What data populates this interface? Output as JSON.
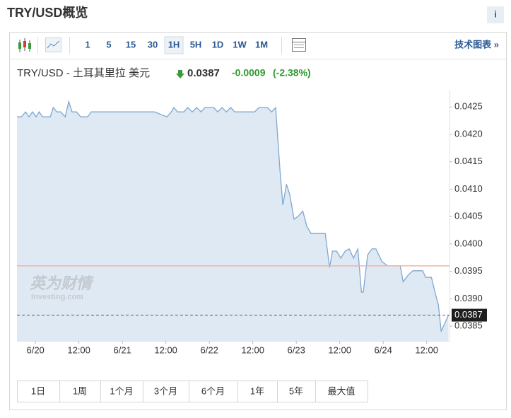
{
  "page": {
    "title": "TRY/USD概览",
    "info": "i"
  },
  "toolbar": {
    "intervals": [
      "1",
      "5",
      "15",
      "30",
      "1H",
      "5H",
      "1D",
      "1W",
      "1M"
    ],
    "selected": "1H",
    "link": "技术图表 »"
  },
  "quote": {
    "name": "TRY/USD - 土耳其里拉 美元",
    "price": 0.0387,
    "change": -0.0009,
    "change_pct": "(-2.38%)"
  },
  "watermark": {
    "cn": "英为财情",
    "en": "Investing.com"
  },
  "ranges": [
    "1日",
    "1周",
    "1个月",
    "3个月",
    "6个月",
    "1年",
    "5年",
    "最大值"
  ],
  "chart_data": {
    "type": "area",
    "color": "#7fa7cf",
    "fill": "#dfe9f4",
    "x": [
      -5.1,
      -3.9,
      -2.7,
      -1.8,
      -0.8,
      0.2,
      1.0,
      2.0,
      3.1,
      4.1,
      4.9,
      5.9,
      7.0,
      8.2,
      9.2,
      10.1,
      11.3,
      12.5,
      14.4,
      15.4,
      32.8,
      36.3,
      37.5,
      38.2,
      39.2,
      41.0,
      42.0,
      43.3,
      44.5,
      45.7,
      46.8,
      48.0,
      49.2,
      50.3,
      51.5,
      52.7,
      53.9,
      55.0,
      60.5,
      61.7,
      64.0,
      65.2,
      66.3,
      67.5,
      68.3,
      69.3,
      70.2,
      71.4,
      72.6,
      73.8,
      74.9,
      76.1,
      78.4,
      80.0,
      81.2,
      82.0,
      83.1,
      84.3,
      85.5,
      86.6,
      87.8,
      89.0,
      90.0,
      90.5,
      91.7,
      92.9,
      94.0,
      95.6,
      97.2,
      100.7,
      101.5,
      103.0,
      104.2,
      106.9,
      107.7,
      109.3,
      110.4,
      111.2,
      112.0,
      113.2,
      114.0
    ],
    "values": [
      0.04232,
      0.04232,
      0.04241,
      0.04232,
      0.04241,
      0.04232,
      0.04241,
      0.04232,
      0.04232,
      0.04232,
      0.04249,
      0.04241,
      0.04241,
      0.04232,
      0.0426,
      0.04241,
      0.04241,
      0.04232,
      0.04232,
      0.04241,
      0.04241,
      0.04232,
      0.04241,
      0.04249,
      0.04241,
      0.04241,
      0.04249,
      0.04241,
      0.04249,
      0.04241,
      0.04249,
      0.04249,
      0.04249,
      0.04241,
      0.04249,
      0.04241,
      0.04249,
      0.04241,
      0.04241,
      0.04249,
      0.04249,
      0.04241,
      0.04249,
      0.04135,
      0.04071,
      0.04109,
      0.0409,
      0.04045,
      0.04051,
      0.0406,
      0.04032,
      0.04019,
      0.04019,
      0.04019,
      0.03957,
      0.03987,
      0.03987,
      0.03974,
      0.03987,
      0.03991,
      0.03974,
      0.03991,
      0.03912,
      0.03912,
      0.0398,
      0.03991,
      0.03991,
      0.03968,
      0.0396,
      0.0396,
      0.03931,
      0.03944,
      0.03951,
      0.03951,
      0.03939,
      0.03939,
      0.03909,
      0.0389,
      0.03841,
      0.03858,
      0.0387
    ],
    "xlim": [
      -5.1,
      114.3
    ],
    "xticks": [
      {
        "value": 0,
        "label": "6/20"
      },
      {
        "value": 12,
        "label": "12:00"
      },
      {
        "value": 24,
        "label": "6/21"
      },
      {
        "value": 36,
        "label": "12:00"
      },
      {
        "value": 48,
        "label": "6/22"
      },
      {
        "value": 60,
        "label": "12:00"
      },
      {
        "value": 72,
        "label": "6/23"
      },
      {
        "value": 84,
        "label": "12:00"
      },
      {
        "value": 96,
        "label": "6/24"
      },
      {
        "value": 108,
        "label": "12:00"
      }
    ],
    "ylim": [
      0.03823,
      0.0428
    ],
    "yticks": [
      0.0425,
      {
        "value": 0.042,
        "label": "0.0420"
      },
      0.0415,
      {
        "value": 0.041,
        "label": "0.0410"
      },
      0.0405,
      {
        "value": 0.04,
        "label": "0.0400"
      },
      0.0395,
      {
        "value": 0.039,
        "label": "0.0390"
      },
      0.0385
    ],
    "reference_line": {
      "value": 0.0396,
      "color": "#f3b3a8"
    }
  }
}
